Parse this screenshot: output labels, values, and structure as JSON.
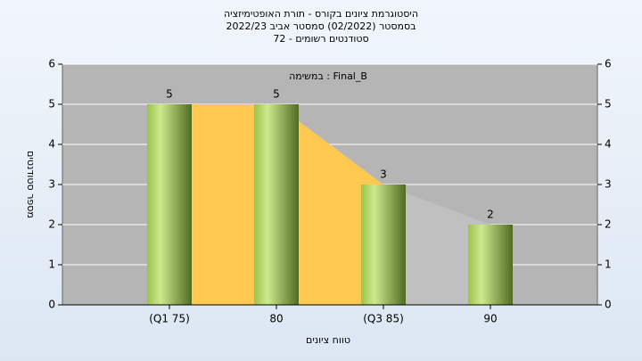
{
  "chart_data": {
    "type": "bar",
    "title": [
      "היסטוגרמת ציונים בקורס - תורת האופטימיזציה",
      "בסמסטר  (02/2022)  סמסטר אביב 2022/23",
      "סטודנטים רשומים - 72"
    ],
    "annotation": "במשימה : Final_B",
    "xlabel": "טווח ציונים",
    "ylabel": "מספר סטודנטים",
    "categories": [
      "(Q1 75)",
      "80",
      "(Q3 85)",
      "90"
    ],
    "values": [
      5,
      5,
      3,
      2
    ],
    "ylim": [
      0,
      6
    ],
    "yticks": [
      0,
      1,
      2,
      3,
      4,
      5,
      6
    ],
    "y2lim": [
      0,
      6
    ],
    "y2ticks": [
      0,
      1,
      2,
      3,
      4,
      5,
      6
    ],
    "grid": true
  }
}
